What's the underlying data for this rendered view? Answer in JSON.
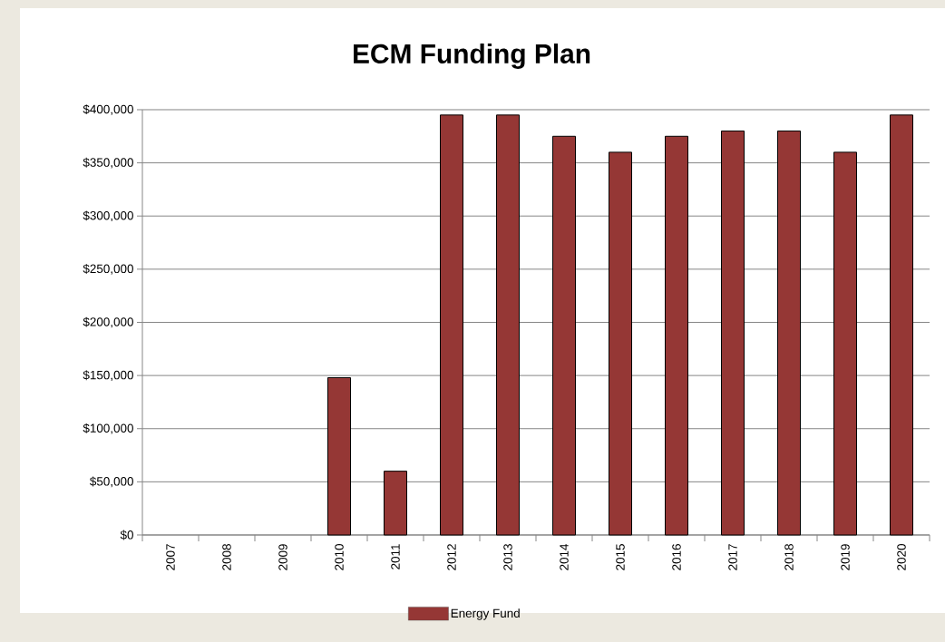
{
  "chart_data": {
    "type": "bar",
    "title": "ECM Funding Plan",
    "categories": [
      "2007",
      "2008",
      "2009",
      "2010",
      "2011",
      "2012",
      "2013",
      "2014",
      "2015",
      "2016",
      "2017",
      "2018",
      "2019",
      "2020"
    ],
    "series": [
      {
        "name": "Energy Fund",
        "color": "#953735",
        "values": [
          0,
          0,
          0,
          148000,
          60000,
          395000,
          395000,
          375000,
          360000,
          375000,
          380000,
          380000,
          360000,
          395000
        ]
      }
    ],
    "ylim": [
      0,
      400000
    ],
    "yticks": [
      {
        "value": 0,
        "label": "$0"
      },
      {
        "value": 50000,
        "label": "$50,000"
      },
      {
        "value": 100000,
        "label": "$100,000"
      },
      {
        "value": 150000,
        "label": "$150,000"
      },
      {
        "value": 200000,
        "label": "$200,000"
      },
      {
        "value": 250000,
        "label": "$250,000"
      },
      {
        "value": 300000,
        "label": "$300,000"
      },
      {
        "value": 350000,
        "label": "$350,000"
      },
      {
        "value": 400000,
        "label": "$400,000"
      }
    ],
    "grid": "y",
    "legend": "bottom"
  }
}
